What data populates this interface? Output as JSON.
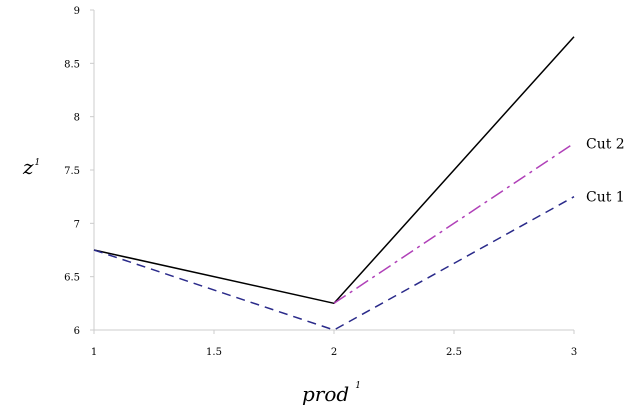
{
  "chart_data": {
    "type": "line",
    "xlabel": "prod",
    "xlabel_superscript": "1",
    "ylabel": "z",
    "ylabel_superscript": "1",
    "xlim": [
      1,
      3
    ],
    "ylim": [
      6,
      9
    ],
    "xticks": [
      "1",
      "1.5",
      "2",
      "2.5",
      "3"
    ],
    "yticks": [
      "6",
      "6.5",
      "7",
      "7.5",
      "8",
      "8.5",
      "9"
    ],
    "grid": false,
    "series": [
      {
        "name": "",
        "x": [
          1,
          2,
          3
        ],
        "y": [
          6.75,
          6.25,
          8.75
        ],
        "color": "#000000",
        "dash": "solid"
      },
      {
        "name": "Cut 2",
        "x": [
          2,
          3
        ],
        "y": [
          6.25,
          7.75
        ],
        "color": "#b040b8",
        "dash": "dashdot"
      },
      {
        "name": "Cut 1",
        "x": [
          1,
          2,
          3
        ],
        "y": [
          6.75,
          6.0,
          7.25
        ],
        "color": "#2a2a8a",
        "dash": "dashed"
      }
    ]
  }
}
